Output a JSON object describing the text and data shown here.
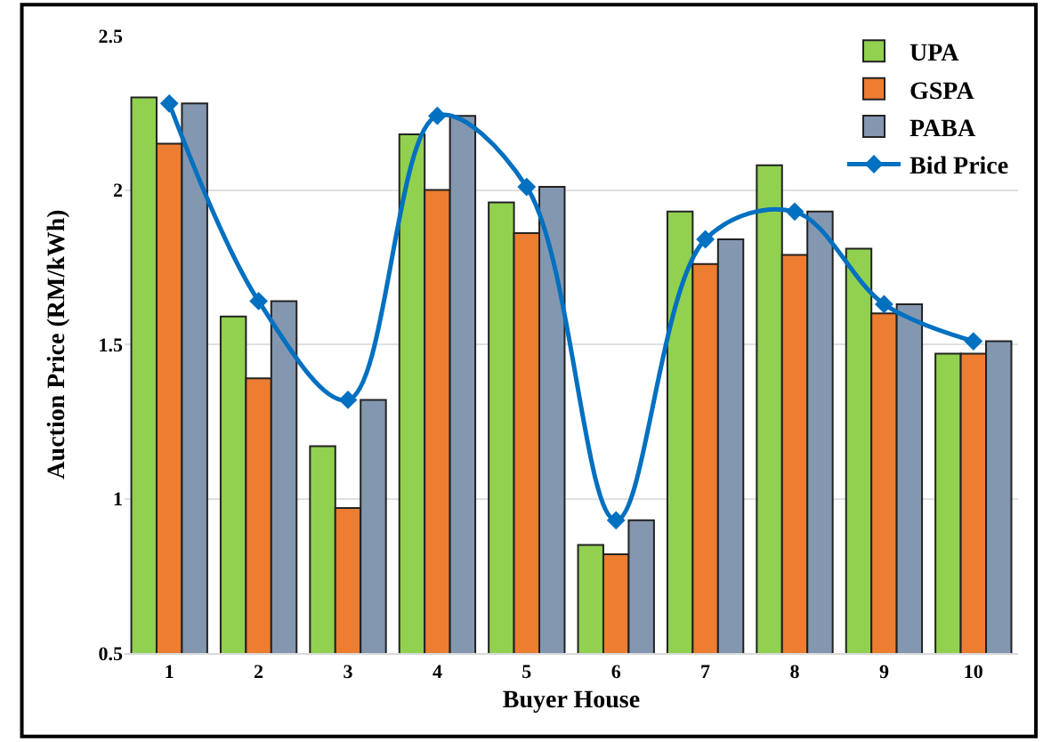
{
  "chart_data": {
    "type": "bar",
    "xlabel": "Buyer House",
    "ylabel": "Auction Price (RM/kWh)",
    "categories": [
      "1",
      "2",
      "3",
      "4",
      "5",
      "6",
      "7",
      "8",
      "9",
      "10"
    ],
    "series": [
      {
        "name": "UPA",
        "color": "#92d050",
        "values": [
          2.3,
          1.59,
          1.17,
          2.18,
          1.96,
          0.85,
          1.93,
          2.08,
          1.81,
          1.47
        ]
      },
      {
        "name": "GSPA",
        "color": "#ed7d31",
        "values": [
          2.15,
          1.39,
          0.97,
          2.0,
          1.86,
          0.82,
          1.76,
          1.79,
          1.6,
          1.47
        ]
      },
      {
        "name": "PABA",
        "color": "#8497b0",
        "values": [
          2.28,
          1.64,
          1.32,
          2.24,
          2.01,
          0.93,
          1.84,
          1.93,
          1.63,
          1.51
        ]
      },
      {
        "name": "Bid Price",
        "type": "line",
        "color": "#0070c0",
        "marker": "diamond",
        "values": [
          2.28,
          1.64,
          1.32,
          2.24,
          2.01,
          0.93,
          1.84,
          1.93,
          1.63,
          1.51
        ]
      }
    ],
    "ylim": [
      0.5,
      2.5
    ],
    "yticks": [
      0.5,
      1,
      1.5,
      2,
      2.5
    ],
    "grid": "y",
    "legend": "top right"
  }
}
